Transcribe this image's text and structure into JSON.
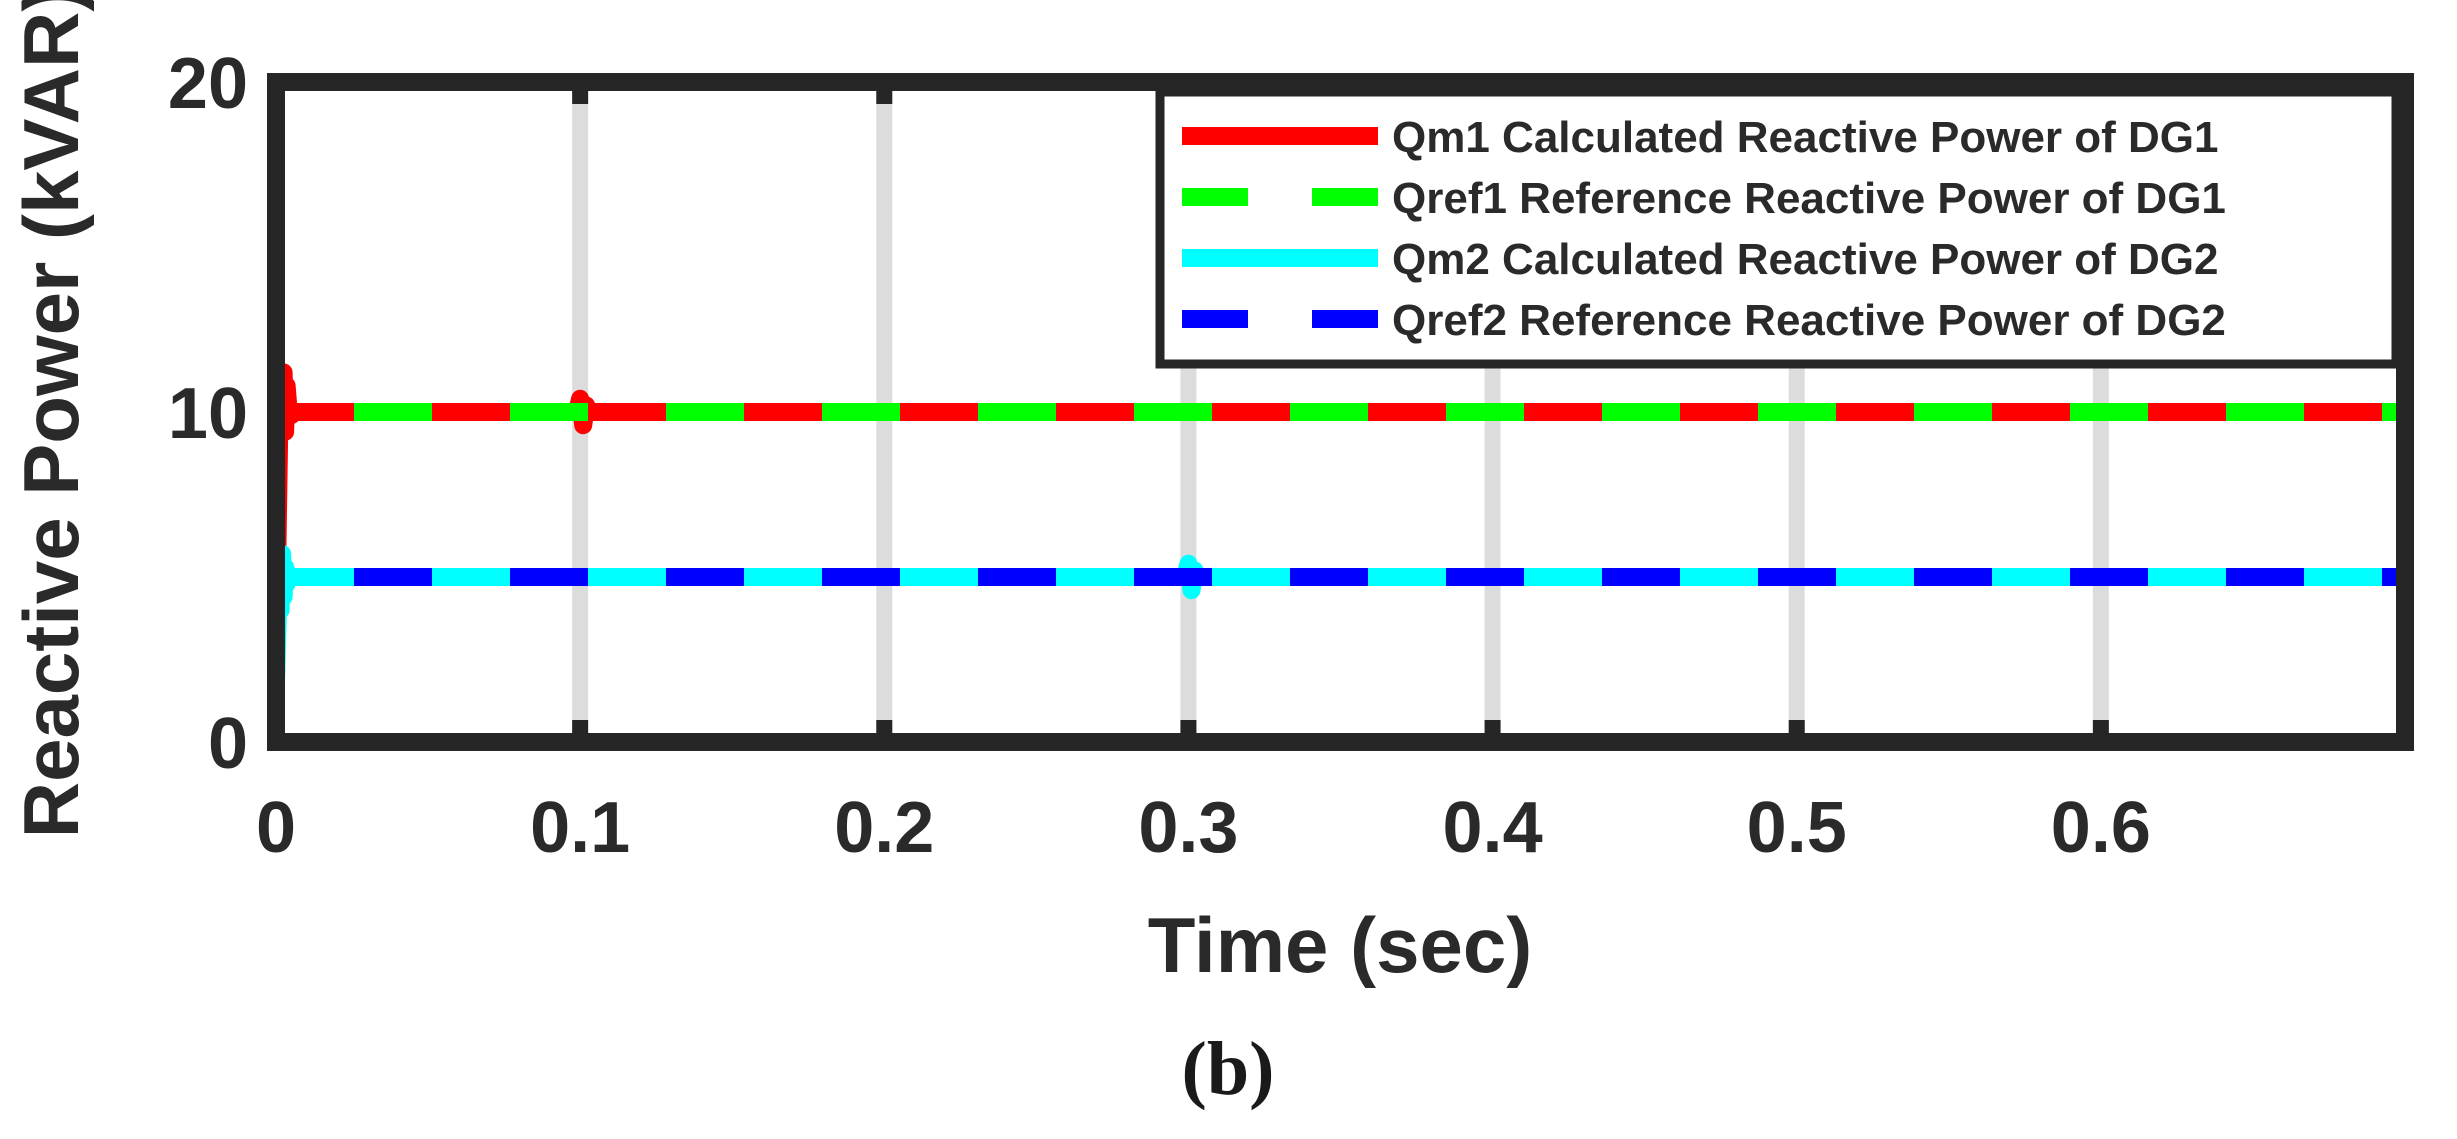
{
  "chart_data": {
    "type": "line",
    "xlabel": "Time (sec)",
    "ylabel": "Reactive Power (kVAR)",
    "caption": "(b)",
    "xlim": [
      0,
      0.7
    ],
    "ylim": [
      0,
      20
    ],
    "xticks": [
      0,
      0.1,
      0.2,
      0.3,
      0.4,
      0.5,
      0.6
    ],
    "xtick_labels": [
      "0",
      "0.1",
      "0.2",
      "0.3",
      "0.4",
      "0.5",
      "0.6"
    ],
    "yticks": [
      0,
      10,
      20
    ],
    "ytick_labels": [
      "0",
      "10",
      "20"
    ],
    "grid": "x",
    "legend_position": "top-right",
    "series": [
      {
        "name": "Qm1 Calculated Reactive Power of DG1",
        "color": "#ff0000",
        "dashed": false,
        "x": [
          0,
          0.0005,
          0.001,
          0.0015,
          0.002,
          0.0025,
          0.003,
          0.0035,
          0.004,
          0.005,
          0.006,
          0.008,
          0.01,
          0.05,
          0.099,
          0.1,
          0.101,
          0.102,
          0.103,
          0.3,
          0.7
        ],
        "y": [
          2,
          6,
          9,
          11,
          10,
          11.2,
          9.4,
          10.8,
          10.2,
          9.9,
          10,
          10,
          10,
          10,
          10,
          10.4,
          9.6,
          10.2,
          10,
          10,
          10
        ]
      },
      {
        "name": "Qref1 Reference Reactive Power of DG1",
        "color": "#00ff00",
        "dashed": true,
        "x": [
          0,
          0.7
        ],
        "y": [
          10,
          10
        ]
      },
      {
        "name": "Qm2 Calculated Reactive Power of DG2",
        "color": "#00ffff",
        "dashed": false,
        "x": [
          0,
          0.0005,
          0.001,
          0.0015,
          0.002,
          0.0025,
          0.003,
          0.0035,
          0.004,
          0.005,
          0.006,
          0.01,
          0.1,
          0.299,
          0.3,
          0.301,
          0.302,
          0.303,
          0.7
        ],
        "y": [
          1.8,
          3.5,
          5.5,
          4,
          5.7,
          4.4,
          5.3,
          4.8,
          5.1,
          5,
          5,
          5,
          5,
          5,
          5.4,
          4.6,
          5.2,
          5,
          5
        ]
      },
      {
        "name": "Qref2 Reference Reactive Power of DG2",
        "color": "#0000ff",
        "dashed": true,
        "x": [
          0,
          0.7
        ],
        "y": [
          5,
          5
        ]
      }
    ]
  }
}
